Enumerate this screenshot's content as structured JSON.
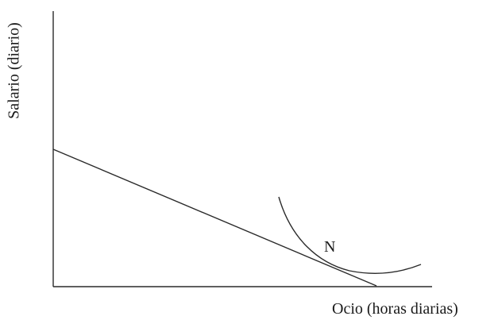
{
  "labels": {
    "y_axis": "Salario (diario)",
    "x_axis": "Ocio (horas diarias)",
    "point": "N"
  },
  "colors": {
    "line": "#2a2a2a",
    "text": "#1a1a1a",
    "background": "#ffffff"
  }
}
